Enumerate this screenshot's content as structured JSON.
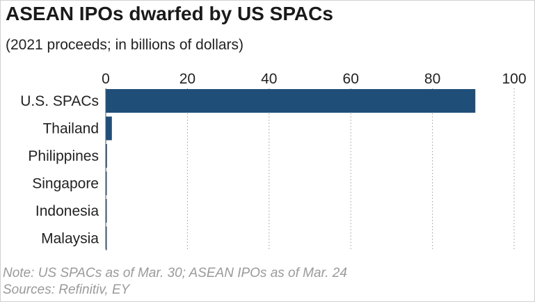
{
  "header": {
    "title": "ASEAN IPOs dwarfed by US SPACs",
    "subtitle": "(2021 proceeds; in billions of dollars)"
  },
  "footer": {
    "note": "Note: US SPACs as of Mar. 30; ASEAN IPOs as of Mar. 24",
    "sources": "Sources: Refinitiv, EY"
  },
  "colors": {
    "bar": "#1f4e79",
    "grid": "#9a9a9a",
    "axis": "#555555",
    "text": "#222222",
    "note": "#9a9a9a"
  },
  "chart_data": {
    "type": "bar",
    "orientation": "horizontal",
    "title": "ASEAN IPOs dwarfed by US SPACs",
    "subtitle": "(2021 proceeds; in billions of dollars)",
    "categories": [
      "U.S. SPACs",
      "Thailand",
      "Philippines",
      "Singapore",
      "Indonesia",
      "Malaysia"
    ],
    "values": [
      90.5,
      1.5,
      0.3,
      0.2,
      0.2,
      0.1
    ],
    "xlim": [
      0,
      100
    ],
    "xticks": [
      0,
      20,
      40,
      60,
      80,
      100
    ],
    "xtick_labels": [
      "0",
      "20",
      "40",
      "60",
      "80",
      "100"
    ],
    "xaxis_position": "top",
    "grid": "vertical dotted",
    "legend": "none"
  }
}
